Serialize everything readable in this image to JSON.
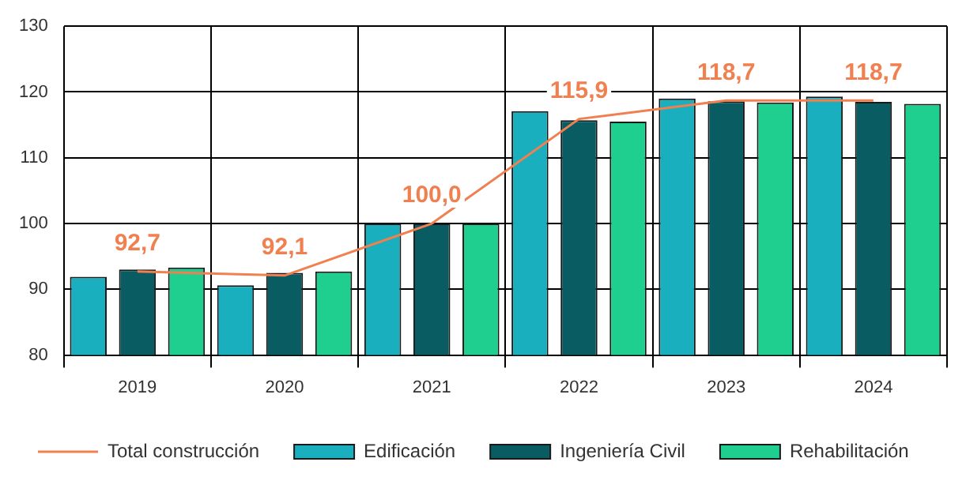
{
  "chart_data": {
    "type": "bar",
    "categories": [
      "2019",
      "2020",
      "2021",
      "2022",
      "2023",
      "2024"
    ],
    "ylim": [
      80,
      130
    ],
    "yticks": [
      80,
      90,
      100,
      110,
      120,
      130
    ],
    "grid": true,
    "legend": "bottom",
    "marker": "none",
    "series": [
      {
        "name": "Edificación",
        "color": "#1aafbf",
        "values": [
          91.9,
          90.6,
          100.0,
          117.1,
          119.0,
          119.3
        ]
      },
      {
        "name": "Ingeniería Civil",
        "color": "#0a5c63",
        "values": [
          93.0,
          92.5,
          100.0,
          115.7,
          118.6,
          118.5
        ]
      },
      {
        "name": "Rehabilitación",
        "color": "#1ecf8f",
        "values": [
          93.3,
          92.7,
          100.0,
          115.5,
          118.4,
          118.2
        ]
      },
      {
        "name": "Total construcción",
        "type": "line",
        "color": "#f08050",
        "values": [
          92.7,
          92.1,
          100.0,
          115.9,
          118.7,
          118.7
        ],
        "value_labels": [
          "92,7",
          "92,1",
          "100,0",
          "115,9",
          "118,7",
          "118,7"
        ]
      }
    ]
  }
}
